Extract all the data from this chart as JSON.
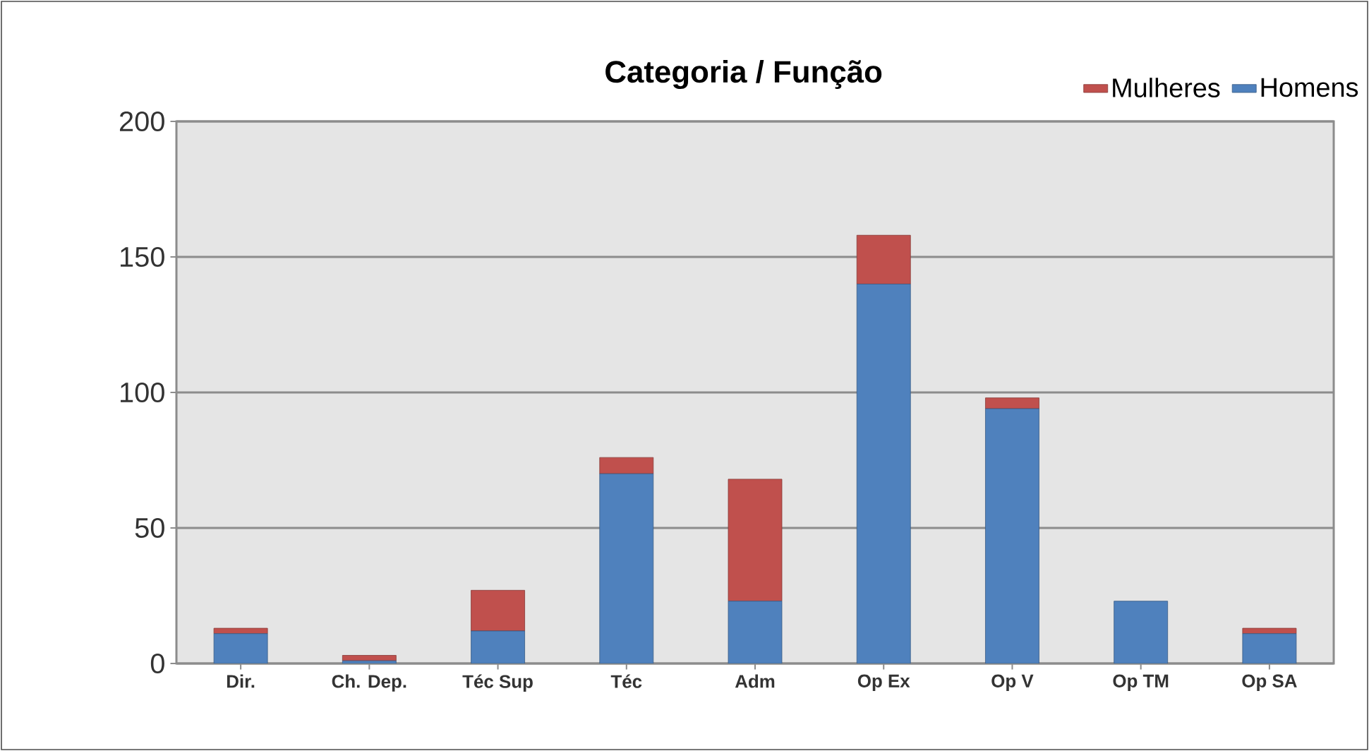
{
  "chart_data": {
    "type": "bar",
    "title": "Categoria / Função",
    "stacked": true,
    "categories": [
      "Dir.",
      "Ch. Dep.",
      "Téc Sup",
      "Téc",
      "Adm",
      "Op Ex",
      "Op V",
      "Op TM",
      "Op SA"
    ],
    "series": [
      {
        "name": "Homens",
        "color": "#4f81bd",
        "values": [
          11,
          1,
          12,
          70,
          23,
          140,
          94,
          23,
          11
        ]
      },
      {
        "name": "Mulheres",
        "color": "#c0504d",
        "values": [
          2,
          2,
          15,
          6,
          45,
          18,
          4,
          0,
          2
        ]
      }
    ],
    "ylim": [
      0,
      200
    ],
    "yticks": [
      0,
      50,
      100,
      150,
      200
    ],
    "grid": "y",
    "legend": "top right"
  }
}
